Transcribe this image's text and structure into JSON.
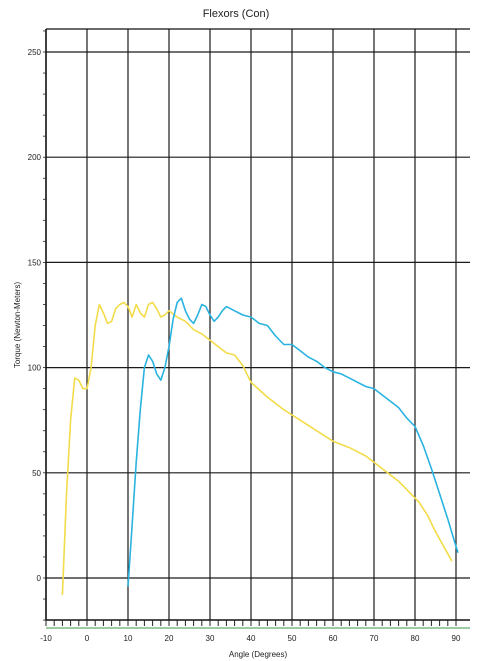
{
  "chart_data": {
    "type": "line",
    "title": "Flexors (Con)",
    "xlabel": "Angle (Degrees)",
    "ylabel": "Torque (Newton-Meters)",
    "xlim": [
      -10,
      92
    ],
    "ylim": [
      -20,
      260
    ],
    "xticks": [
      -10,
      0,
      10,
      20,
      30,
      40,
      50,
      60,
      70,
      80,
      90
    ],
    "yticks": [
      0,
      50,
      100,
      150,
      200,
      250
    ],
    "grid": true,
    "legend": "none",
    "series": [
      {
        "color": "#f2dc4a",
        "points": [
          [
            -6,
            -8
          ],
          [
            -5,
            40
          ],
          [
            -4,
            75
          ],
          [
            -3,
            95
          ],
          [
            -2,
            94
          ],
          [
            -1,
            90
          ],
          [
            0,
            90
          ],
          [
            1,
            100
          ],
          [
            2,
            120
          ],
          [
            3,
            130
          ],
          [
            4,
            126
          ],
          [
            5,
            121
          ],
          [
            6,
            122
          ],
          [
            7,
            128
          ],
          [
            8,
            130
          ],
          [
            9,
            131
          ],
          [
            10,
            129
          ],
          [
            11,
            124
          ],
          [
            12,
            130
          ],
          [
            13,
            126
          ],
          [
            14,
            124
          ],
          [
            15,
            130
          ],
          [
            16,
            131
          ],
          [
            17,
            128
          ],
          [
            18,
            124
          ],
          [
            19,
            125
          ],
          [
            20,
            127
          ],
          [
            22,
            124
          ],
          [
            24,
            122
          ],
          [
            26,
            118
          ],
          [
            28,
            116
          ],
          [
            30,
            113
          ],
          [
            32,
            110
          ],
          [
            34,
            107
          ],
          [
            36,
            106
          ],
          [
            38,
            101
          ],
          [
            40,
            93
          ],
          [
            44,
            86
          ],
          [
            48,
            80
          ],
          [
            52,
            75
          ],
          [
            56,
            70
          ],
          [
            60,
            65
          ],
          [
            64,
            62
          ],
          [
            68,
            58
          ],
          [
            72,
            52
          ],
          [
            76,
            46
          ],
          [
            79,
            40
          ],
          [
            81,
            36
          ],
          [
            83,
            30
          ],
          [
            85,
            22
          ],
          [
            87,
            15
          ],
          [
            89,
            8
          ]
        ]
      },
      {
        "color": "#2ab3e0",
        "points": [
          [
            10,
            -4
          ],
          [
            11,
            25
          ],
          [
            12,
            55
          ],
          [
            13,
            80
          ],
          [
            14,
            100
          ],
          [
            15,
            106
          ],
          [
            16,
            103
          ],
          [
            17,
            97
          ],
          [
            18,
            94
          ],
          [
            19,
            100
          ],
          [
            20,
            110
          ],
          [
            21,
            123
          ],
          [
            22,
            131
          ],
          [
            23,
            133
          ],
          [
            24,
            127
          ],
          [
            25,
            123
          ],
          [
            26,
            121
          ],
          [
            27,
            125
          ],
          [
            28,
            130
          ],
          [
            29,
            129
          ],
          [
            30,
            125
          ],
          [
            31,
            122
          ],
          [
            32,
            124
          ],
          [
            33,
            127
          ],
          [
            34,
            129
          ],
          [
            35,
            128
          ],
          [
            36,
            127
          ],
          [
            38,
            125
          ],
          [
            40,
            124
          ],
          [
            42,
            121
          ],
          [
            44,
            120
          ],
          [
            46,
            115
          ],
          [
            48,
            111
          ],
          [
            50,
            111
          ],
          [
            52,
            108
          ],
          [
            54,
            105
          ],
          [
            56,
            103
          ],
          [
            58,
            100
          ],
          [
            60,
            98
          ],
          [
            62,
            97
          ],
          [
            64,
            95
          ],
          [
            66,
            93
          ],
          [
            68,
            91
          ],
          [
            70,
            90
          ],
          [
            72,
            87
          ],
          [
            74,
            84
          ],
          [
            76,
            81
          ],
          [
            78,
            76
          ],
          [
            80,
            72
          ],
          [
            82,
            63
          ],
          [
            84,
            52
          ],
          [
            86,
            40
          ],
          [
            88,
            28
          ],
          [
            90,
            15
          ],
          [
            90.5,
            12
          ]
        ]
      }
    ]
  }
}
